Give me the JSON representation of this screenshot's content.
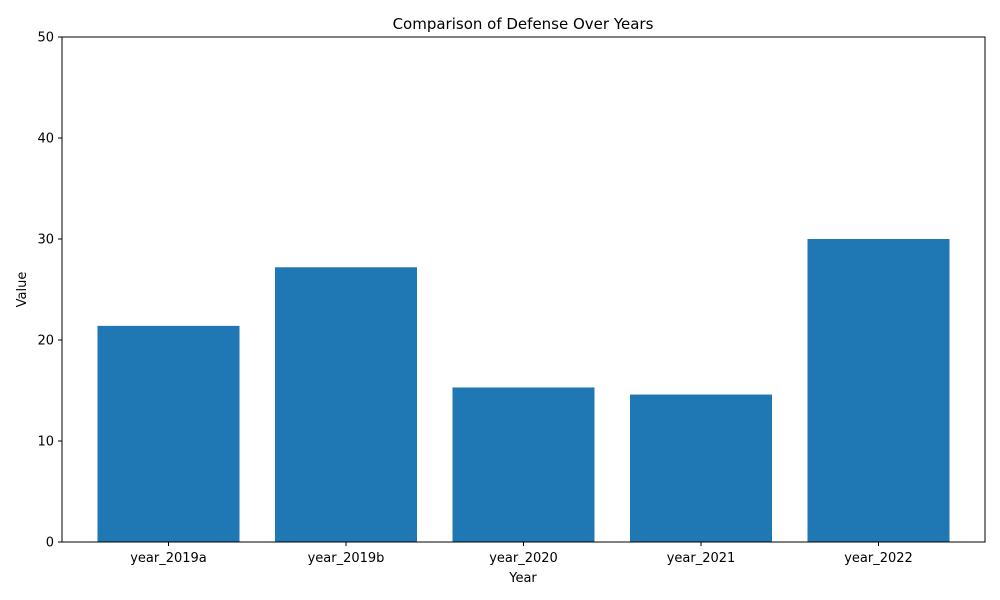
{
  "chart_data": {
    "type": "bar",
    "title": "Comparison of Defense Over Years",
    "xlabel": "Year",
    "ylabel": "Value",
    "categories": [
      "year_2019a",
      "year_2019b",
      "year_2020",
      "year_2021",
      "year_2022"
    ],
    "values": [
      21.4,
      27.2,
      15.3,
      14.6,
      30.0
    ],
    "ylim": [
      0,
      50
    ],
    "yticks": [
      0,
      10,
      20,
      30,
      40,
      50
    ],
    "bar_color": "#1f77b4",
    "grid": false,
    "legend": "none"
  }
}
